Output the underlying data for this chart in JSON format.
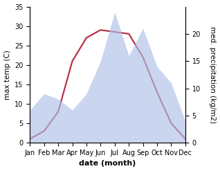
{
  "months": [
    "Jan",
    "Feb",
    "Mar",
    "Apr",
    "May",
    "Jun",
    "Jul",
    "Aug",
    "Sep",
    "Oct",
    "Nov",
    "Dec"
  ],
  "x_positions": [
    0,
    1,
    2,
    3,
    4,
    5,
    6,
    7,
    8,
    9,
    10,
    11
  ],
  "temperature": [
    1,
    3,
    8,
    21,
    27,
    29,
    28.5,
    28,
    22,
    13,
    5,
    1
  ],
  "precipitation": [
    6,
    9,
    8,
    6,
    9,
    15,
    24,
    16,
    21,
    14,
    11,
    4
  ],
  "temp_ylim": [
    0,
    35
  ],
  "right_yticks": [
    0,
    5,
    10,
    15,
    20
  ],
  "right_ylim": [
    0,
    35
  ],
  "left_yticks": [
    0,
    5,
    10,
    15,
    20,
    25,
    30,
    35
  ],
  "fill_color": "#aec0e8",
  "fill_alpha": 0.65,
  "line_color": "#b83248",
  "line_width": 1.6,
  "ylabel_left": "max temp (C)",
  "ylabel_right": "med. precipitation (kg/m2)",
  "xlabel": "date (month)",
  "tick_fontsize": 7,
  "label_fontsize": 7.5,
  "xlabel_fontsize": 8
}
